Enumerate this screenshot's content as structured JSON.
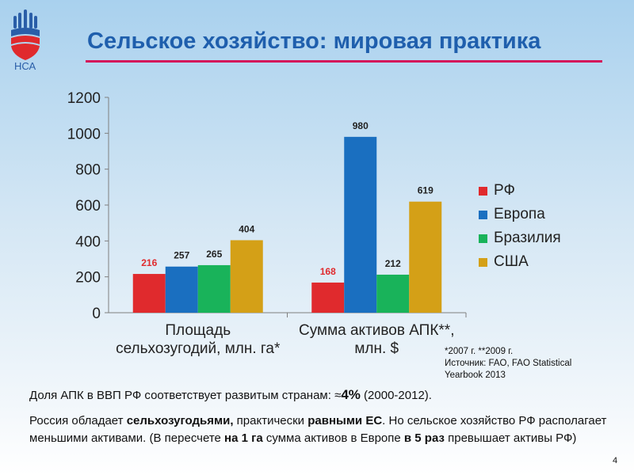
{
  "slide": {
    "logo_text": "НСА",
    "title": "Сельское хозяйство: мировая практика",
    "page_number": "4"
  },
  "chart_data": {
    "type": "bar",
    "categories": [
      "Площадь сельхозугодий, млн. га*",
      "Сумма активов АПК**, млн. $"
    ],
    "category_lines": [
      [
        "Площадь",
        "сельхозугодий, млн. га*"
      ],
      [
        "Сумма активов АПК**,",
        "млн. $"
      ]
    ],
    "series": [
      {
        "name": "РФ",
        "values": [
          216,
          168
        ],
        "color": "#e02a2d"
      },
      {
        "name": "Европа",
        "values": [
          257,
          980
        ],
        "color": "#1a6fc0"
      },
      {
        "name": "Бразилия",
        "values": [
          265,
          212
        ],
        "color": "#19b35a"
      },
      {
        "name": "США",
        "values": [
          404,
          619
        ],
        "color": "#d4a017"
      }
    ],
    "ylim": [
      0,
      1200
    ],
    "yticks": [
      0,
      200,
      400,
      600,
      800,
      1000,
      1200
    ],
    "grid": false,
    "legend": "right",
    "label_colors": [
      "#e02a2d",
      "#222222",
      "#222222",
      "#222222"
    ]
  },
  "footnote": {
    "line1": "*2007  г. **2009 г.",
    "line2": "Источник: FAO, FAO Statistical",
    "line3": "Yearbook 2013"
  },
  "statement1": {
    "text": "Доля АПК в ВВП РФ соответствует развитым странам:  ≈",
    "bold": "4%",
    "tail": " (2000-2012)."
  },
  "statement2": {
    "p1": "Россия обладает ",
    "b1": "сельхозугодьями,",
    "p2": " практически ",
    "b2": "равными ЕС",
    "p3": ". Но сельское хозяйство РФ располагает меньшими активами. (В пересчете ",
    "b3": "на 1 га",
    "p4": " сумма активов в Европе ",
    "b4": "в 5 раз",
    "p5": " превышает активы РФ)"
  }
}
